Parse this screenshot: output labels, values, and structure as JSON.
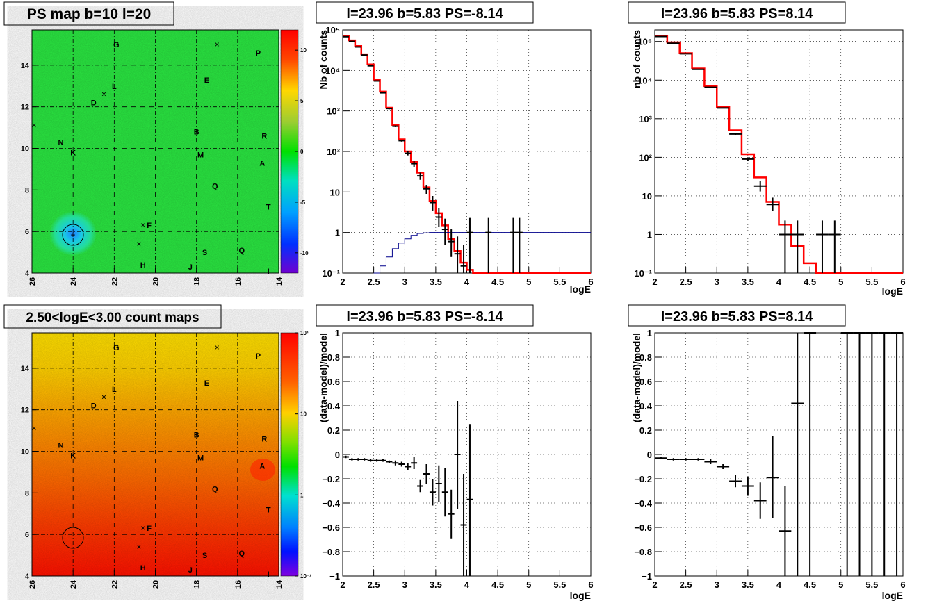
{
  "chart_data": [
    {
      "id": "ps_map",
      "type": "heatmap",
      "title": "PS map b=10 l=20",
      "x_ticks": [
        "26",
        "24",
        "22",
        "20",
        "18",
        "16",
        "14"
      ],
      "y_ticks": [
        "4",
        "6",
        "8",
        "10",
        "12",
        "14"
      ],
      "xlim": [
        26,
        14
      ],
      "ylim": [
        4,
        15.7
      ],
      "grid": true,
      "colorbar": {
        "scale": "linear",
        "range": [
          -12,
          12
        ],
        "ticks": [
          "10",
          "5",
          "0",
          "-5",
          "-10"
        ]
      },
      "dominant_value": 0,
      "hotspot": {
        "l": 23.96,
        "b": 5.83,
        "value": -8.14
      },
      "labels": [
        {
          "text": "G",
          "l": 21.9,
          "b": 15.0
        },
        {
          "text": "P",
          "l": 15.0,
          "b": 14.6
        },
        {
          "text": "L",
          "l": 22.0,
          "b": 13.0
        },
        {
          "text": "E",
          "l": 17.5,
          "b": 13.3
        },
        {
          "text": "D",
          "l": 23.0,
          "b": 12.2
        },
        {
          "text": "B",
          "l": 18.0,
          "b": 10.8
        },
        {
          "text": "R",
          "l": 14.7,
          "b": 10.6
        },
        {
          "text": "N",
          "l": 24.6,
          "b": 10.3
        },
        {
          "text": "K",
          "l": 24.0,
          "b": 9.8
        },
        {
          "text": "M",
          "l": 17.8,
          "b": 9.7
        },
        {
          "text": "A",
          "l": 14.8,
          "b": 9.3
        },
        {
          "text": "Q",
          "l": 17.1,
          "b": 8.2
        },
        {
          "text": "T",
          "l": 14.5,
          "b": 7.2
        },
        {
          "text": "F",
          "l": 20.3,
          "b": 6.3
        },
        {
          "text": "S",
          "l": 17.6,
          "b": 5.0
        },
        {
          "text": "Q",
          "l": 15.8,
          "b": 5.1
        },
        {
          "text": "H",
          "l": 20.6,
          "b": 4.4
        },
        {
          "text": "J",
          "l": 18.3,
          "b": 4.3
        },
        {
          "text": "I",
          "l": 14.5,
          "b": 4.1
        }
      ],
      "markers": [
        {
          "l": 17.0,
          "b": 15.0
        },
        {
          "l": 22.5,
          "b": 12.6
        },
        {
          "l": 25.9,
          "b": 11.1
        },
        {
          "l": 20.6,
          "b": 6.3
        },
        {
          "l": 20.8,
          "b": 5.4
        }
      ]
    },
    {
      "id": "count_map",
      "type": "heatmap",
      "title": "2.50<logE<3.00 count maps",
      "x_ticks": [
        "26",
        "24",
        "22",
        "20",
        "18",
        "16",
        "14"
      ],
      "y_ticks": [
        "4",
        "6",
        "8",
        "10",
        "12",
        "14"
      ],
      "xlim": [
        26,
        14
      ],
      "ylim": [
        4,
        15.7
      ],
      "grid": true,
      "colorbar": {
        "scale": "log",
        "range": [
          0.1,
          100
        ],
        "ticks": [
          "10²",
          "10",
          "1",
          "10⁻¹"
        ]
      },
      "gradient_note": "counts increase toward low b",
      "hotspot": {
        "l": 23.96,
        "b": 5.83
      }
    },
    {
      "id": "spectrum_left",
      "type": "line",
      "title": "l=23.96 b=5.83 PS=-8.14",
      "xlabel": "logE",
      "ylabel": "Nb of counts",
      "xlim": [
        2,
        6
      ],
      "ylim": [
        0.1,
        100000
      ],
      "yscale": "log",
      "x_ticks": [
        "2",
        "2.5",
        "3",
        "3.5",
        "4",
        "4.5",
        "5",
        "5.5",
        "6"
      ],
      "y_ticks": [
        "10⁻¹",
        "1",
        "10",
        "10²",
        "10³",
        "10⁴",
        "10⁵"
      ],
      "grid": true,
      "series": [
        {
          "kind": "step",
          "color": "#ff0000",
          "bin_width": 0.1,
          "x": [
            2.0,
            2.1,
            2.2,
            2.3,
            2.4,
            2.5,
            2.6,
            2.7,
            2.8,
            2.9,
            3.0,
            3.1,
            3.2,
            3.3,
            3.4,
            3.5,
            3.6,
            3.7,
            3.8,
            3.9,
            4.0,
            4.1,
            4.2,
            4.3,
            4.4,
            4.5,
            4.6,
            4.7,
            4.8,
            4.9,
            5.0,
            5.1,
            5.2,
            5.3,
            5.4,
            5.5,
            5.6,
            5.7,
            5.8,
            5.9
          ],
          "values": [
            70000,
            55000,
            40000,
            25000,
            14000,
            6000,
            3000,
            1200,
            450,
            200,
            100,
            55,
            30,
            13,
            6,
            3,
            1.5,
            0.7,
            0.35,
            0.18,
            0.12,
            0.1,
            0.1,
            0.1,
            0.1,
            0.1,
            0.1,
            0.1,
            0.1,
            0.1,
            0.1,
            0.1,
            0.1,
            0.1,
            0.1,
            0.1,
            0.1,
            0.1,
            0.1,
            0.1
          ]
        },
        {
          "kind": "step",
          "color": "#00008b",
          "bin_width": 0.1,
          "x": [
            2.5,
            2.6,
            2.7,
            2.8,
            2.9,
            3.0,
            3.1,
            3.2,
            3.3,
            3.4
          ],
          "values": [
            0.1,
            0.15,
            0.25,
            0.4,
            0.55,
            0.7,
            0.85,
            0.95,
            0.98,
            1.0
          ],
          "flat_after": 1.0,
          "flat_until": 6.0
        },
        {
          "kind": "points",
          "color": "#000000",
          "x": [
            2.05,
            2.15,
            2.25,
            2.35,
            2.45,
            2.55,
            2.65,
            2.75,
            2.85,
            2.95,
            3.05,
            3.15,
            3.25,
            3.35,
            3.45,
            3.55,
            3.65,
            3.75,
            3.85,
            3.95,
            4.05,
            4.35,
            4.75,
            4.85
          ],
          "values": [
            68000,
            52000,
            38000,
            24000,
            13000,
            5500,
            2800,
            1150,
            420,
            185,
            90,
            50,
            25,
            12,
            5.5,
            2.4,
            1.2,
            0.6,
            0.3,
            0.15,
            1,
            1,
            1,
            1
          ],
          "y_low": [
            66000,
            50000,
            37000,
            23500,
            12800,
            5400,
            2750,
            1100,
            400,
            175,
            80,
            42,
            20,
            9,
            3.5,
            1.4,
            0.5,
            0.25,
            0.1,
            0.1,
            0.1,
            0.1,
            0.1,
            0.1
          ],
          "y_high": [
            70000,
            54000,
            39000,
            24500,
            13200,
            5600,
            2850,
            1200,
            440,
            195,
            100,
            58,
            30,
            15,
            8,
            4,
            2.2,
            1.2,
            0.8,
            0.5,
            2.3,
            2.3,
            2.3,
            2.3
          ]
        }
      ]
    },
    {
      "id": "spectrum_right",
      "type": "line",
      "title": "l=23.96 b=5.83 PS=8.14",
      "xlabel": "logE",
      "ylabel": "nb of counts",
      "xlim": [
        2,
        6
      ],
      "ylim": [
        0.1,
        200000
      ],
      "yscale": "log",
      "x_ticks": [
        "2",
        "2.5",
        "3",
        "3.5",
        "4",
        "4.5",
        "5",
        "5.5",
        "6"
      ],
      "y_ticks": [
        "10⁻¹",
        "1",
        "10",
        "10²",
        "10³",
        "10⁴",
        "10⁵"
      ],
      "grid": true,
      "series": [
        {
          "kind": "step",
          "color": "#ff0000",
          "bin_width": 0.2,
          "x": [
            2.0,
            2.2,
            2.4,
            2.6,
            2.8,
            3.0,
            3.2,
            3.4,
            3.6,
            3.8,
            4.0,
            4.2,
            4.4,
            4.6,
            4.8,
            5.0,
            5.2,
            5.4,
            5.6,
            5.8
          ],
          "values": [
            140000,
            95000,
            50000,
            20000,
            7000,
            2000,
            500,
            120,
            30,
            7,
            1.8,
            0.5,
            0.18,
            0.1,
            0.1,
            0.1,
            0.1,
            0.1,
            0.1,
            0.1
          ]
        },
        {
          "kind": "points",
          "color": "#000000",
          "x": [
            2.1,
            2.3,
            2.5,
            2.7,
            2.9,
            3.1,
            3.3,
            3.5,
            3.7,
            3.9,
            4.1,
            4.3,
            4.7,
            4.9
          ],
          "values": [
            135000,
            90000,
            48000,
            19000,
            6500,
            1900,
            400,
            90,
            18,
            6,
            1,
            1,
            1,
            1
          ],
          "y_low": [
            133000,
            89000,
            47500,
            18800,
            6400,
            1850,
            380,
            80,
            13,
            4,
            0.1,
            0.1,
            0.1,
            0.1
          ],
          "y_high": [
            137000,
            91000,
            48500,
            19200,
            6600,
            1950,
            420,
            100,
            24,
            9,
            2.3,
            2.3,
            2.3,
            2.3
          ]
        }
      ]
    },
    {
      "id": "residual_left",
      "type": "scatter",
      "title": "l=23.96 b=5.83 PS=-8.14",
      "xlabel": "logE",
      "ylabel": "(data-model)/model",
      "xlim": [
        2,
        6
      ],
      "ylim": [
        -1,
        1
      ],
      "x_ticks": [
        "2",
        "2.5",
        "3",
        "3.5",
        "4",
        "4.5",
        "5",
        "5.5",
        "6"
      ],
      "y_ticks": [
        "−1",
        "−0.8",
        "−0.6",
        "−0.4",
        "−0.2",
        "0",
        "0.2",
        "0.4",
        "0.6",
        "0.8",
        "1"
      ],
      "grid": true,
      "bin_width": 0.1,
      "x": [
        2.05,
        2.15,
        2.25,
        2.35,
        2.45,
        2.55,
        2.65,
        2.75,
        2.85,
        2.95,
        3.05,
        3.15,
        3.25,
        3.35,
        3.45,
        3.55,
        3.65,
        3.75,
        3.85,
        3.95,
        4.05
      ],
      "values": [
        -0.02,
        -0.04,
        -0.04,
        -0.04,
        -0.05,
        -0.05,
        -0.05,
        -0.06,
        -0.07,
        -0.08,
        -0.1,
        -0.07,
        -0.26,
        -0.16,
        -0.31,
        -0.24,
        -0.31,
        -0.49,
        0.0,
        -0.58,
        -0.37
      ],
      "y_low": [
        -0.03,
        -0.05,
        -0.05,
        -0.05,
        -0.06,
        -0.06,
        -0.06,
        -0.07,
        -0.09,
        -0.1,
        -0.13,
        -0.12,
        -0.31,
        -0.24,
        -0.42,
        -0.39,
        -0.51,
        -0.69,
        -0.45,
        -1.0,
        -1.0
      ],
      "y_high": [
        -0.01,
        -0.03,
        -0.03,
        -0.03,
        -0.04,
        -0.04,
        -0.04,
        -0.05,
        -0.05,
        -0.06,
        -0.07,
        -0.02,
        -0.21,
        -0.08,
        -0.2,
        -0.09,
        -0.11,
        -0.29,
        0.44,
        -0.16,
        0.25
      ]
    },
    {
      "id": "residual_right",
      "type": "scatter",
      "title": "l=23.96 b=5.83 PS=8.14",
      "xlabel": "logE",
      "ylabel": "(data-model)/model",
      "xlim": [
        2,
        6
      ],
      "ylim": [
        -1,
        1
      ],
      "x_ticks": [
        "2",
        "2.5",
        "3",
        "3.5",
        "4",
        "4.5",
        "5",
        "5.5",
        "6"
      ],
      "y_ticks": [
        "−1",
        "−0.8",
        "−0.6",
        "−0.4",
        "−0.2",
        "0",
        "0.2",
        "0.4",
        "0.6",
        "0.8",
        "1"
      ],
      "grid": true,
      "bin_width": 0.2,
      "x": [
        2.1,
        2.3,
        2.5,
        2.7,
        2.9,
        3.1,
        3.3,
        3.5,
        3.7,
        3.9,
        4.1,
        4.3,
        4.5,
        5.1,
        5.3,
        5.5,
        5.7,
        5.9
      ],
      "values": [
        -0.03,
        -0.04,
        -0.04,
        -0.04,
        -0.06,
        -0.1,
        -0.22,
        -0.26,
        -0.38,
        -0.19,
        -0.63,
        0.42,
        1.0,
        1.0,
        1.0,
        1.0,
        1.0,
        1.0
      ],
      "y_low": [
        -0.04,
        -0.05,
        -0.05,
        -0.05,
        -0.08,
        -0.12,
        -0.27,
        -0.34,
        -0.53,
        -0.52,
        -1.0,
        -1.0,
        -1.0,
        -1.0,
        -1.0,
        -1.0,
        -1.0,
        -1.0
      ],
      "y_high": [
        -0.02,
        -0.03,
        -0.03,
        -0.03,
        -0.04,
        -0.08,
        -0.17,
        -0.18,
        -0.23,
        0.15,
        -0.26,
        1.0,
        1.0,
        1.0,
        1.0,
        1.0,
        1.0,
        1.0
      ]
    }
  ]
}
